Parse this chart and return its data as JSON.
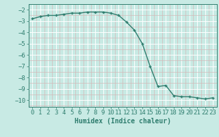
{
  "x": [
    0,
    1,
    2,
    3,
    4,
    5,
    6,
    7,
    8,
    9,
    10,
    11,
    12,
    13,
    14,
    15,
    16,
    17,
    18,
    19,
    20,
    21,
    22,
    23
  ],
  "y": [
    -2.8,
    -2.6,
    -2.5,
    -2.5,
    -2.4,
    -2.3,
    -2.3,
    -2.2,
    -2.2,
    -2.2,
    -2.3,
    -2.5,
    -3.1,
    -3.8,
    -5.0,
    -7.0,
    -8.8,
    -8.7,
    -9.6,
    -9.7,
    -9.7,
    -9.8,
    -9.9,
    -9.8
  ],
  "line_color": "#2e7d6e",
  "marker": "+",
  "marker_size": 3,
  "marker_linewidth": 1.0,
  "bg_color": "#c8eae4",
  "grid_major_color": "#ffffff",
  "grid_minor_color": "#d4b8b8",
  "xlabel": "Humidex (Indice chaleur)",
  "xlim": [
    -0.5,
    23.5
  ],
  "ylim": [
    -10.6,
    -1.5
  ],
  "yticks": [
    -2,
    -3,
    -4,
    -5,
    -6,
    -7,
    -8,
    -9,
    -10
  ],
  "xticks": [
    0,
    1,
    2,
    3,
    4,
    5,
    6,
    7,
    8,
    9,
    10,
    11,
    12,
    13,
    14,
    15,
    16,
    17,
    18,
    19,
    20,
    21,
    22,
    23
  ],
  "tick_color": "#2e7d6e",
  "label_color": "#2e7d6e",
  "font_size_xlabel": 7,
  "font_size_tick": 6.5,
  "linewidth": 1.0
}
